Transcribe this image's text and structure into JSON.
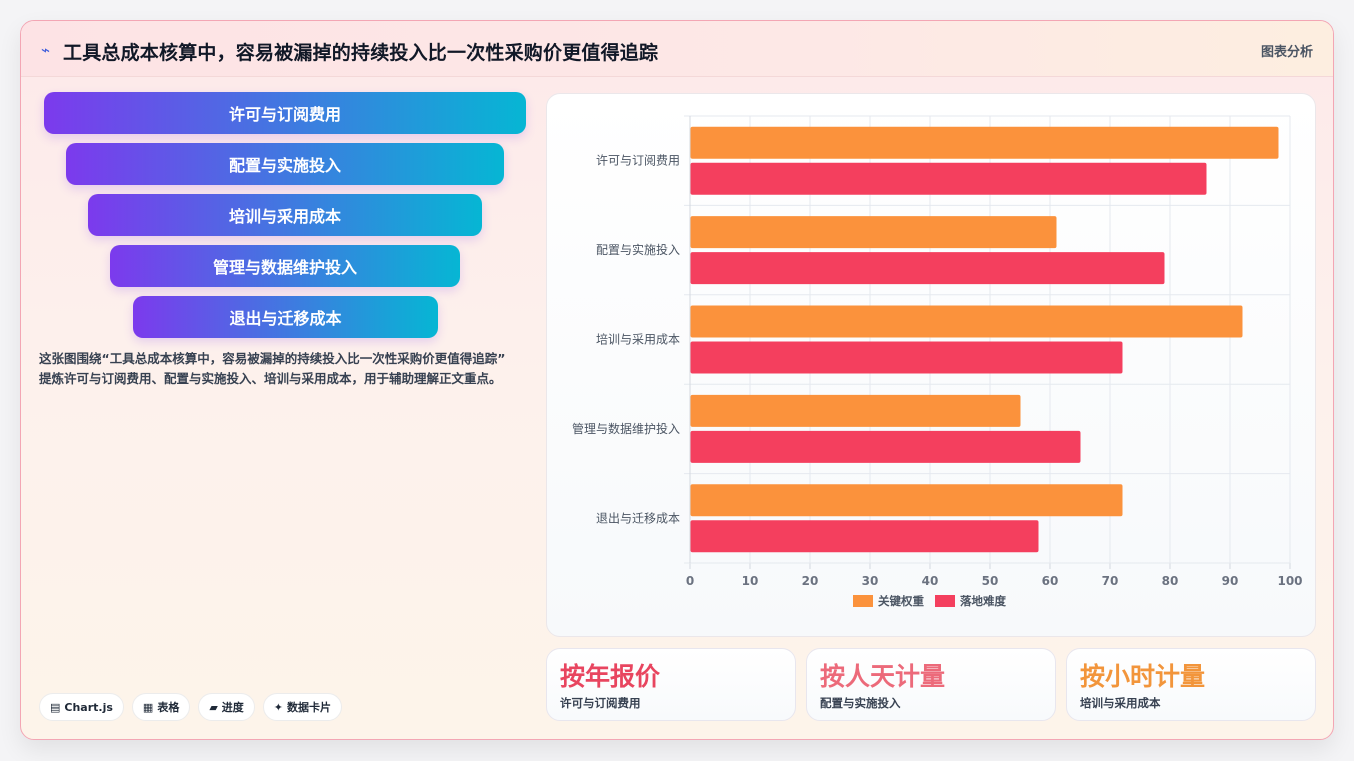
{
  "header": {
    "icon": "trend-icon",
    "title": "工具总成本核算中，容易被漏掉的持续投入比一次性采购价更值得追踪",
    "tag": "图表分析"
  },
  "funnel": {
    "levels": [
      "许可与订阅费用",
      "配置与实施投入",
      "培训与采用成本",
      "管理与数据维护投入",
      "退出与迁移成本"
    ]
  },
  "description": {
    "line1": "这张图围绕“工具总成本核算中，容易被漏掉的持续投入比一次性采购价更值得追踪”",
    "line2": "提炼许可与订阅费用、配置与实施投入、培训与采用成本，用于辅助理解正文重点。"
  },
  "chips": [
    {
      "icon": "chart-icon",
      "label": "Chart.js"
    },
    {
      "icon": "table-icon",
      "label": "表格"
    },
    {
      "icon": "progress-icon",
      "label": "进度"
    },
    {
      "icon": "sparkle-icon",
      "label": "数据卡片"
    }
  ],
  "stats": [
    {
      "value": "按年报价",
      "label": "许可与订阅费用",
      "color": "#e8455f"
    },
    {
      "value": "按人天计量",
      "label": "配置与实施投入",
      "color": "#ec6a7a"
    },
    {
      "value": "按小时计量",
      "label": "培训与采用成本",
      "color": "#f2953b"
    }
  ],
  "chart_data": {
    "type": "bar",
    "orientation": "horizontal",
    "categories": [
      "许可与订阅费用",
      "配置与实施投入",
      "培训与采用成本",
      "管理与数据维护投入",
      "退出与迁移成本"
    ],
    "series": [
      {
        "name": "关键权重",
        "values": [
          98,
          61,
          92,
          55,
          72
        ],
        "color": "#fb923c"
      },
      {
        "name": "落地难度",
        "values": [
          86,
          79,
          72,
          65,
          58
        ],
        "color": "#f43f5e"
      }
    ],
    "xlim": [
      0,
      100
    ],
    "xticks": [
      "0",
      "10",
      "20",
      "30",
      "40",
      "50",
      "60",
      "70",
      "80",
      "90",
      "100"
    ],
    "grid": true,
    "legend_position": "bottom"
  }
}
